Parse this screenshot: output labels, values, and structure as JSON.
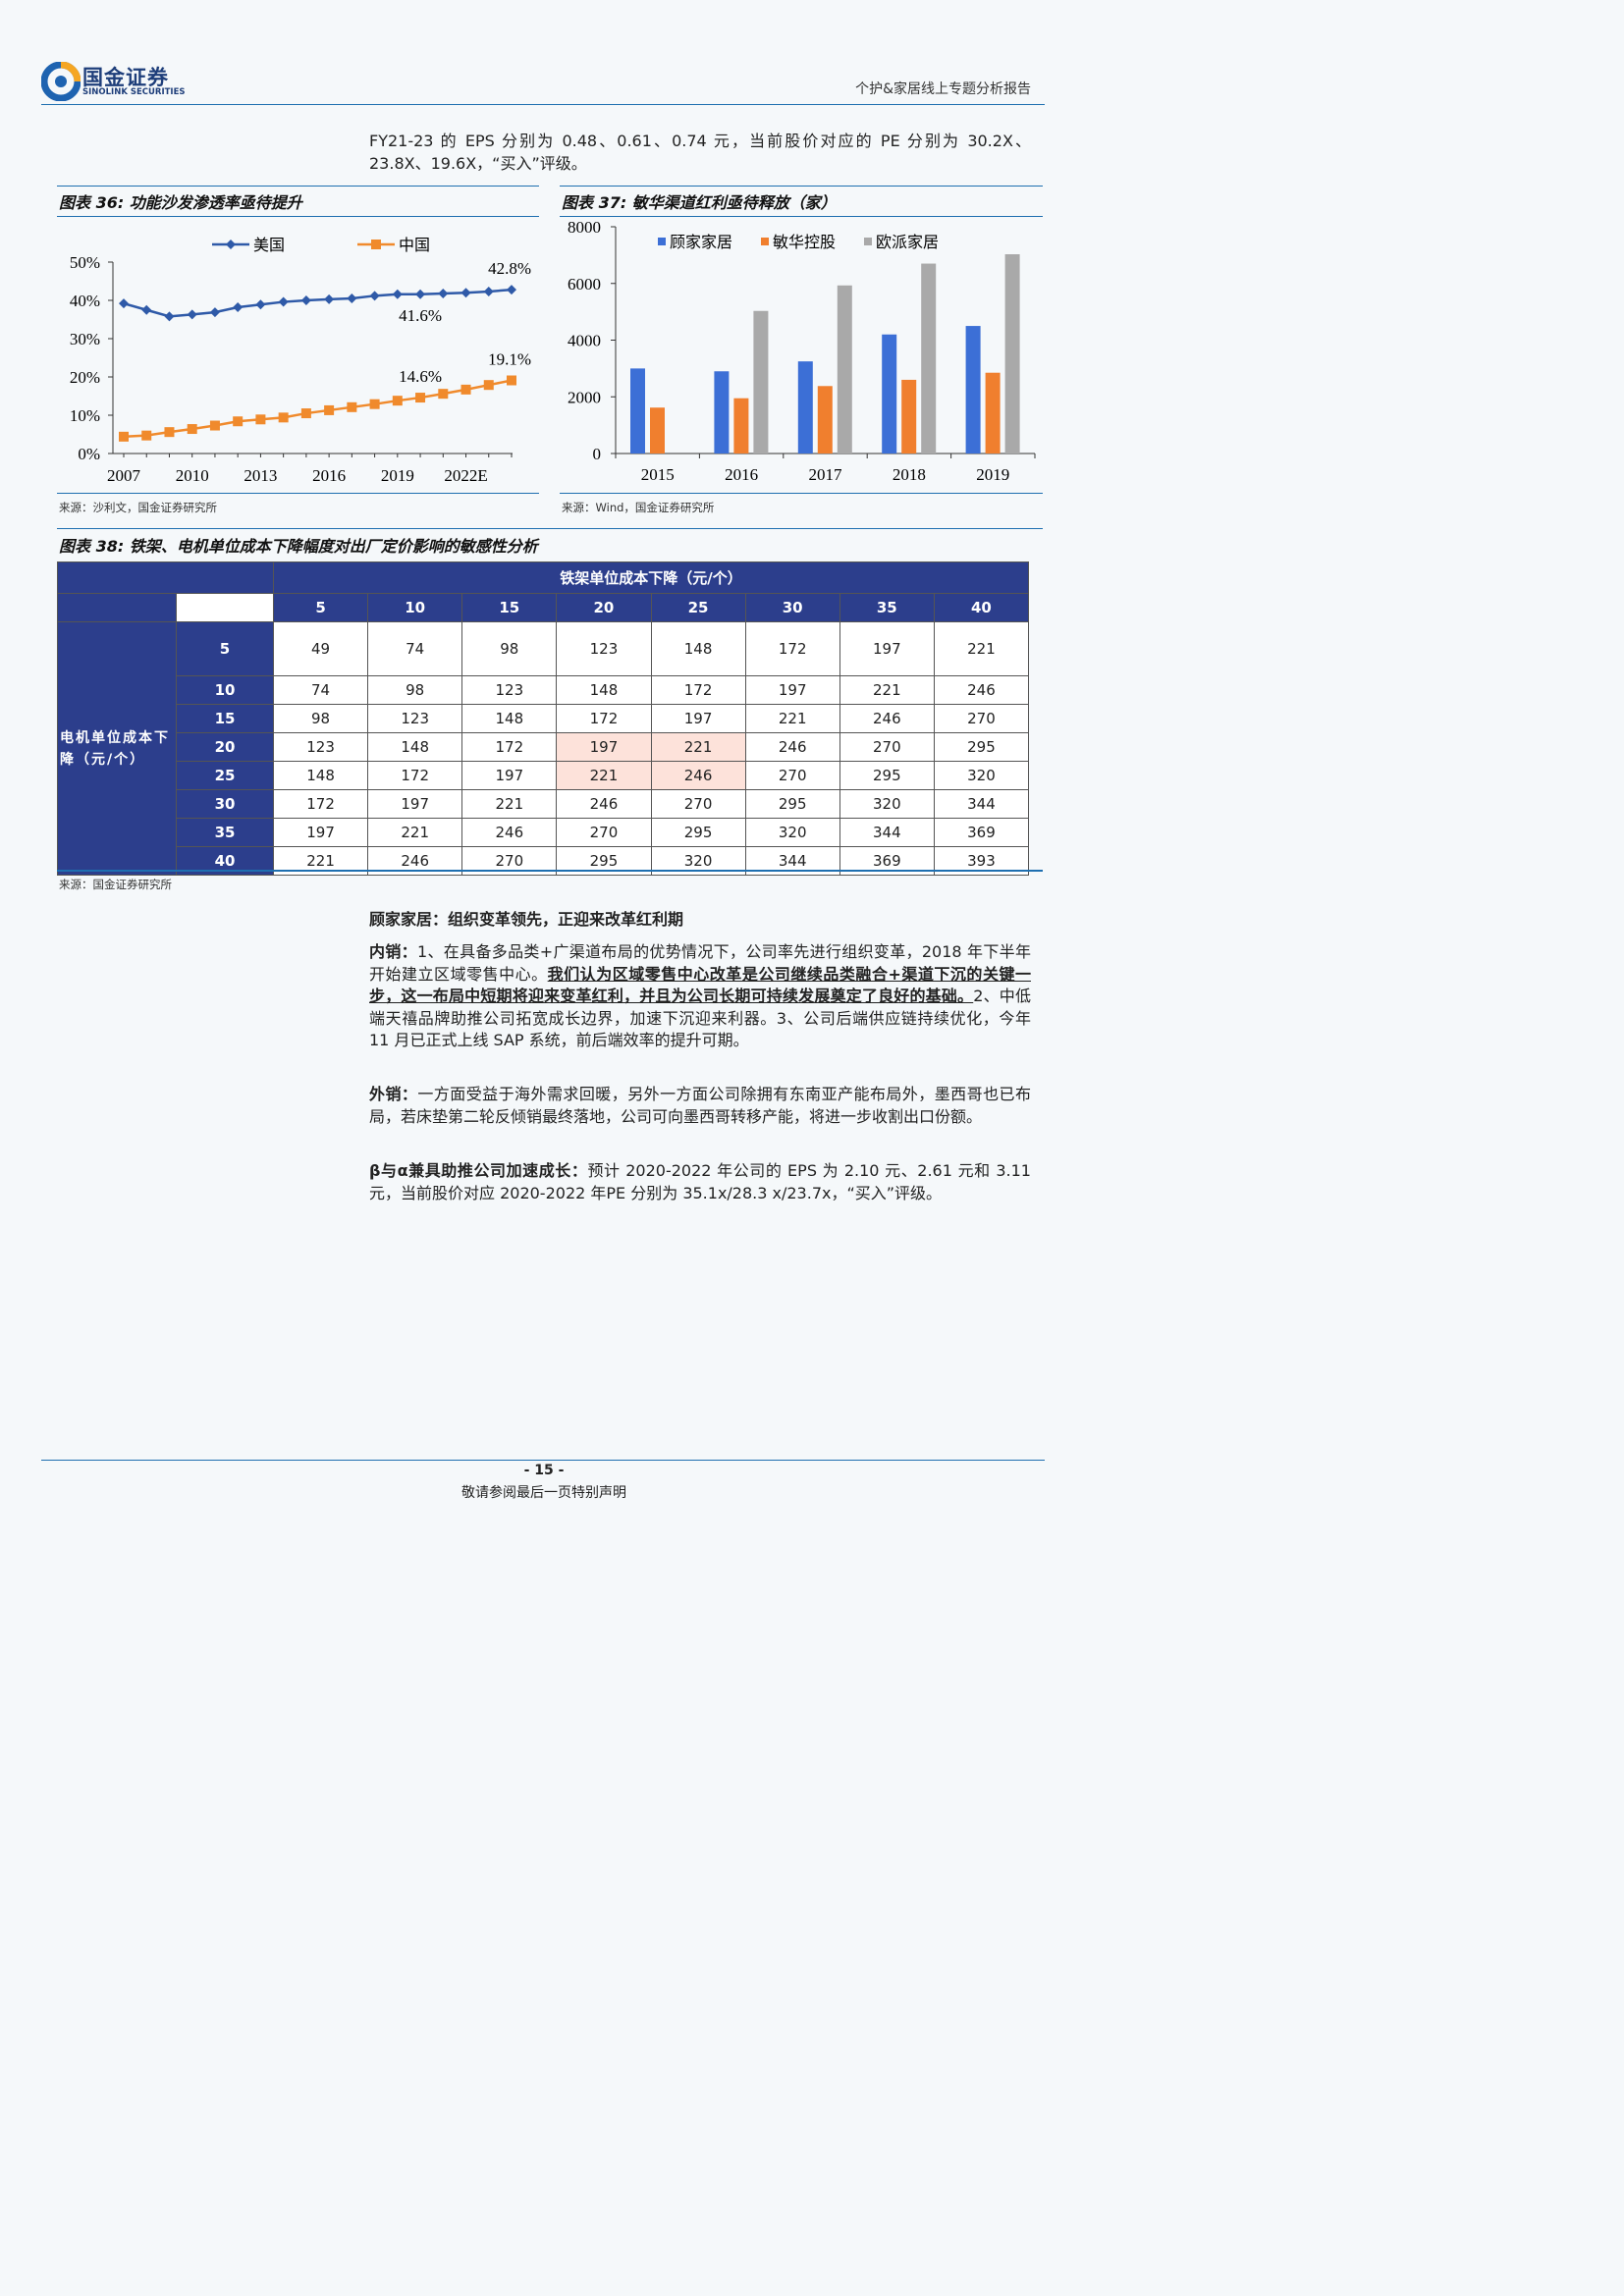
{
  "header": {
    "logo_cn": "国金证券",
    "logo_en": "SINOLINK SECURITIES",
    "report_title": "个护&家居线上专题分析报告"
  },
  "intro_para": "FY21-23 的 EPS 分别为 0.48、0.61、0.74 元，当前股价对应的 PE 分别为 30.2X、23.8X、19.6X，“买入”评级。",
  "fig36": {
    "title": "图表 36:  功能沙发渗透率亟待提升",
    "source": "来源：沙利文，国金证券研究所"
  },
  "fig37": {
    "title": "图表 37:  敏华渠道红利亟待释放（家）",
    "source": "来源：Wind，国金证券研究所"
  },
  "fig38": {
    "title": "图表 38:  铁架、电机单位成本下降幅度对出厂定价影响的敏感性分析",
    "col_header": "铁架单位成本下降（元/个）",
    "row_header": "电机单位成本下降（元/个）",
    "col_values": [
      "5",
      "10",
      "15",
      "20",
      "25",
      "30",
      "35",
      "40"
    ],
    "rows": [
      {
        "label": "5",
        "cells": [
          "49",
          "74",
          "98",
          "123",
          "148",
          "172",
          "197",
          "221"
        ]
      },
      {
        "label": "10",
        "cells": [
          "74",
          "98",
          "123",
          "148",
          "172",
          "197",
          "221",
          "246"
        ]
      },
      {
        "label": "15",
        "cells": [
          "98",
          "123",
          "148",
          "172",
          "197",
          "221",
          "246",
          "270"
        ]
      },
      {
        "label": "20",
        "cells": [
          "123",
          "148",
          "172",
          "197",
          "221",
          "246",
          "270",
          "295"
        ]
      },
      {
        "label": "25",
        "cells": [
          "148",
          "172",
          "197",
          "221",
          "246",
          "270",
          "295",
          "320"
        ]
      },
      {
        "label": "30",
        "cells": [
          "172",
          "197",
          "221",
          "246",
          "270",
          "295",
          "320",
          "344"
        ]
      },
      {
        "label": "35",
        "cells": [
          "197",
          "221",
          "246",
          "270",
          "295",
          "320",
          "344",
          "369"
        ]
      },
      {
        "label": "40",
        "cells": [
          "221",
          "246",
          "270",
          "295",
          "320",
          "344",
          "369",
          "393"
        ]
      }
    ],
    "source": "来源：国金证券研究所"
  },
  "body": {
    "heading": "顾家家居：组织变革领先，正迎来改革红利期",
    "p1_label": "内销：",
    "p1_a": "1、在具备多品类+广渠道布局的优势情况下，公司率先进行组织变革，2018 年下半年开始建立区域零售中心。",
    "p1_b": "我们认为区域零售中心改革是公司继续品类融合+渠道下沉的关键一步，这一布局中短期将迎来变革红利，并且为公司长期可持续发展奠定了良好的基础。",
    "p1_c": "2、中低端天禧品牌助推公司拓宽成长边界，加速下沉迎来利器。3、公司后端供应链持续优化，今年 11 月已正式上线 SAP 系统，前后端效率的提升可期。",
    "p2_label": "外销：",
    "p2": "一方面受益于海外需求回暖，另外一方面公司除拥有东南亚产能布局外，墨西哥也已布局，若床垫第二轮反倾销最终落地，公司可向墨西哥转移产能，将进一步收割出口份额。",
    "p3_label": "β与α兼具助推公司加速成长：",
    "p3": "预计 2020-2022 年公司的 EPS 为 2.10 元、2.61 元和 3.11 元，当前股价对应 2020-2022 年PE 分别为 35.1x/28.3 x/23.7x，“买入”评级。"
  },
  "footer": {
    "page_number": "- 15 -",
    "note": "敬请参阅最后一页特别声明"
  },
  "chart_data": [
    {
      "type": "line",
      "title": "图表 36:  功能沙发渗透率亟待提升",
      "x": [
        2007,
        2008,
        2009,
        2010,
        2011,
        2012,
        2013,
        2014,
        2015,
        2016,
        2017,
        2018,
        2019,
        2020,
        2021,
        2022,
        2023,
        2024
      ],
      "x_tick_labels": [
        "2007",
        "2010",
        "2013",
        "2016",
        "2019",
        "2022E"
      ],
      "y_tick_labels": [
        "0%",
        "10%",
        "20%",
        "30%",
        "40%",
        "50%"
      ],
      "ylim": [
        0,
        50
      ],
      "series": [
        {
          "name": "美国",
          "color": "#2f5aa8",
          "marker": "diamond",
          "values": [
            39.2,
            37.5,
            35.8,
            36.3,
            36.9,
            38.2,
            38.9,
            39.6,
            40.0,
            40.3,
            40.5,
            41.2,
            41.6,
            41.6,
            41.8,
            42.0,
            42.3,
            42.8
          ]
        },
        {
          "name": "中国",
          "color": "#f08a2c",
          "marker": "square",
          "values": [
            4.4,
            4.7,
            5.6,
            6.4,
            7.3,
            8.4,
            8.9,
            9.4,
            10.5,
            11.3,
            12.1,
            12.9,
            13.8,
            14.6,
            15.6,
            16.7,
            17.9,
            19.1
          ]
        }
      ],
      "annotations": [
        {
          "text": "42.8%",
          "series": "美国",
          "x": 2024
        },
        {
          "text": "41.6%",
          "series": "美国",
          "x": 2020
        },
        {
          "text": "19.1%",
          "series": "中国",
          "x": 2024
        },
        {
          "text": "14.6%",
          "series": "中国",
          "x": 2020
        }
      ],
      "legend": "top-center",
      "grid": false
    },
    {
      "type": "bar",
      "title": "图表 37:  敏华渠道红利亟待释放（家）",
      "categories": [
        "2015",
        "2016",
        "2017",
        "2018",
        "2019"
      ],
      "ylim": [
        0,
        8000
      ],
      "y_ticks": [
        0,
        2000,
        4000,
        6000,
        8000
      ],
      "series": [
        {
          "name": "顾家家居",
          "color": "#3c6fd6",
          "values": [
            3000,
            2900,
            3250,
            4200,
            4500
          ]
        },
        {
          "name": "敏华控股",
          "color": "#f07f2e",
          "values": [
            1620,
            1950,
            2380,
            2600,
            2850
          ]
        },
        {
          "name": "欧派家居",
          "color": "#a9a9a9",
          "values": [
            null,
            5030,
            5930,
            6700,
            7030
          ]
        }
      ],
      "legend": "top",
      "grid": false
    }
  ]
}
